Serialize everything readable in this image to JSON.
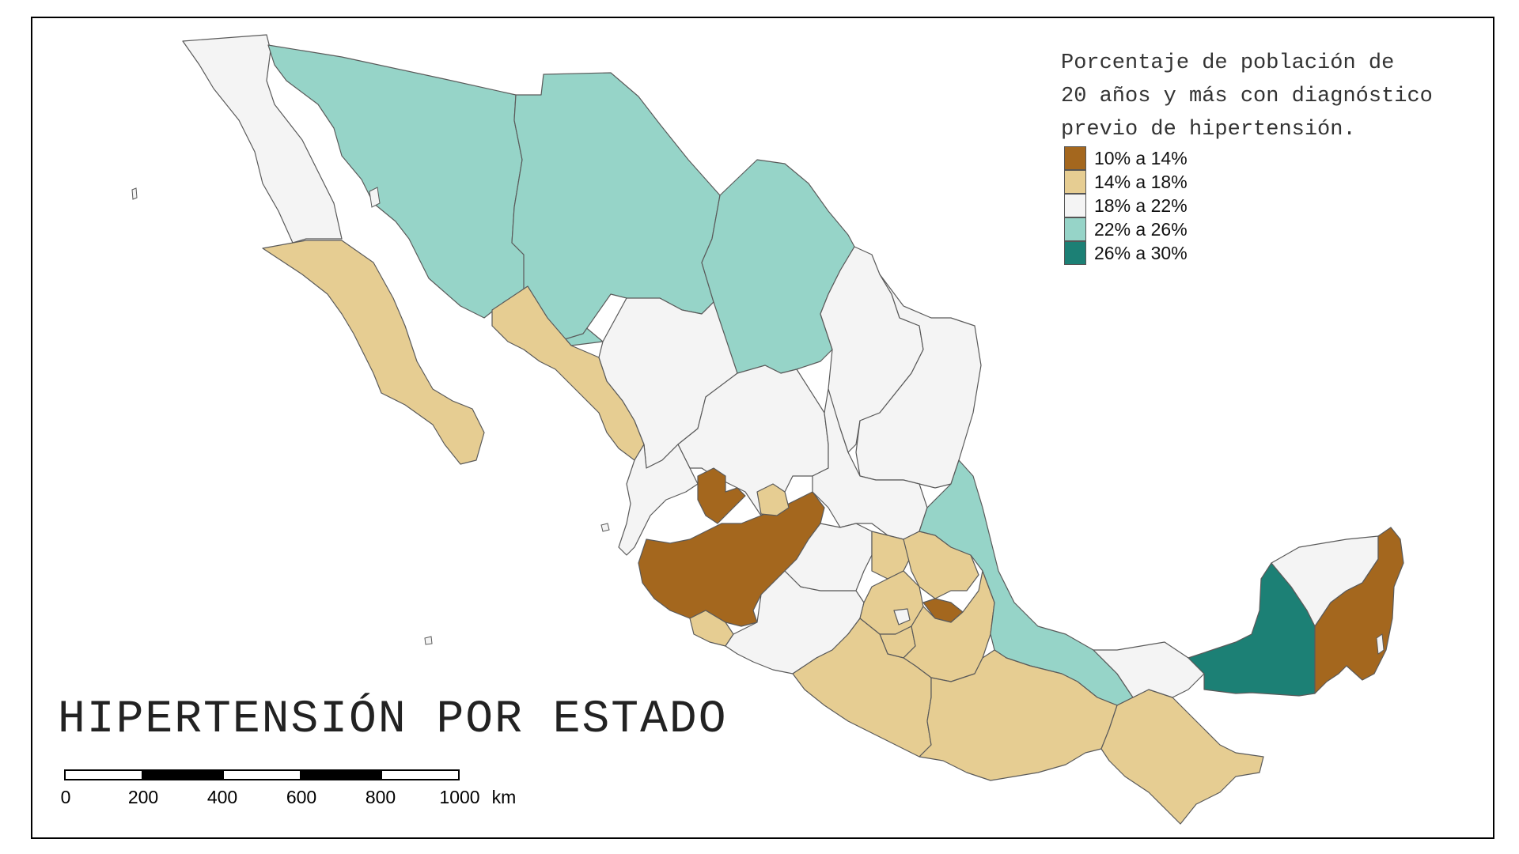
{
  "map": {
    "title": "HIPERTENSIÓN POR ESTADO",
    "legend": {
      "title_lines": [
        "Porcentaje de población de",
        "20 años y más con diagnóstico",
        "previo de hipertensión."
      ],
      "classes": [
        {
          "label": "10% a 14%",
          "color": "#a4671e"
        },
        {
          "label": "14% a 18%",
          "color": "#e6cd92"
        },
        {
          "label": "18% a 22%",
          "color": "#f4f4f4"
        },
        {
          "label": "22% a 26%",
          "color": "#96d4c8"
        },
        {
          "label": "26% a 30%",
          "color": "#1c8075"
        }
      ]
    },
    "scale_bar": {
      "ticks": [
        "0",
        "200",
        "400",
        "600",
        "800",
        "1000"
      ],
      "unit": "km"
    }
  }
}
